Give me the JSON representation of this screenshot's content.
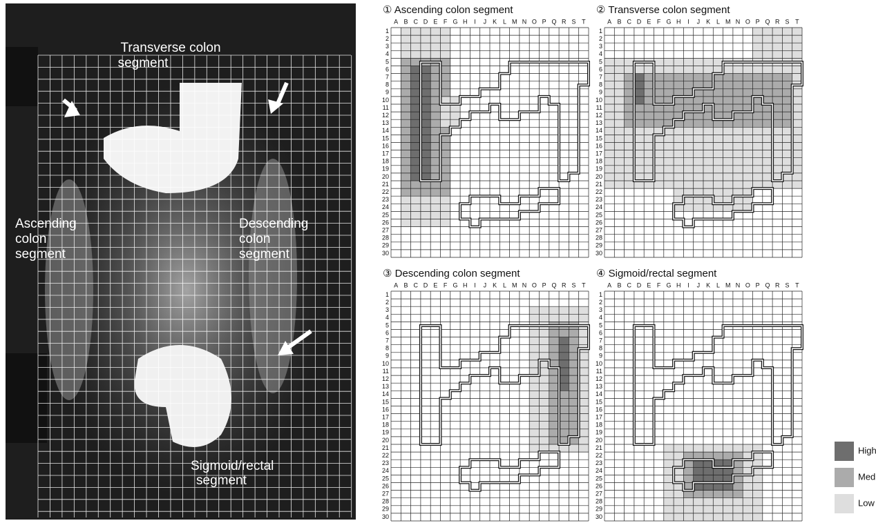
{
  "left_image": {
    "labels": [
      {
        "lines": [
          "Transverse colon",
          "segment"
        ]
      },
      {
        "lines": [
          "Ascending",
          "colon",
          "segment"
        ]
      },
      {
        "lines": [
          "Descending",
          "colon",
          "segment"
        ]
      },
      {
        "lines": [
          "Sigmoid/rectal",
          "segment"
        ]
      }
    ]
  },
  "grid": {
    "columns": [
      "A",
      "B",
      "C",
      "D",
      "E",
      "F",
      "G",
      "H",
      "I",
      "J",
      "K",
      "L",
      "M",
      "N",
      "O",
      "P",
      "Q",
      "R",
      "S",
      "T"
    ],
    "rows": [
      "1",
      "2",
      "3",
      "4",
      "5",
      "6",
      "7",
      "8",
      "9",
      "10",
      "11",
      "12",
      "13",
      "14",
      "15",
      "16",
      "17",
      "18",
      "19",
      "20",
      "21",
      "22",
      "23",
      "24",
      "25",
      "26",
      "27",
      "28",
      "29",
      "30"
    ]
  },
  "panels": [
    {
      "title": "① Ascending colon segment"
    },
    {
      "title": "② Transverse colon segment"
    },
    {
      "title": "③ Descending colon segment"
    },
    {
      "title": "④ Sigmoid/rectal segment"
    }
  ],
  "legend": {
    "items": [
      "High",
      "Medium",
      "Low"
    ]
  }
}
